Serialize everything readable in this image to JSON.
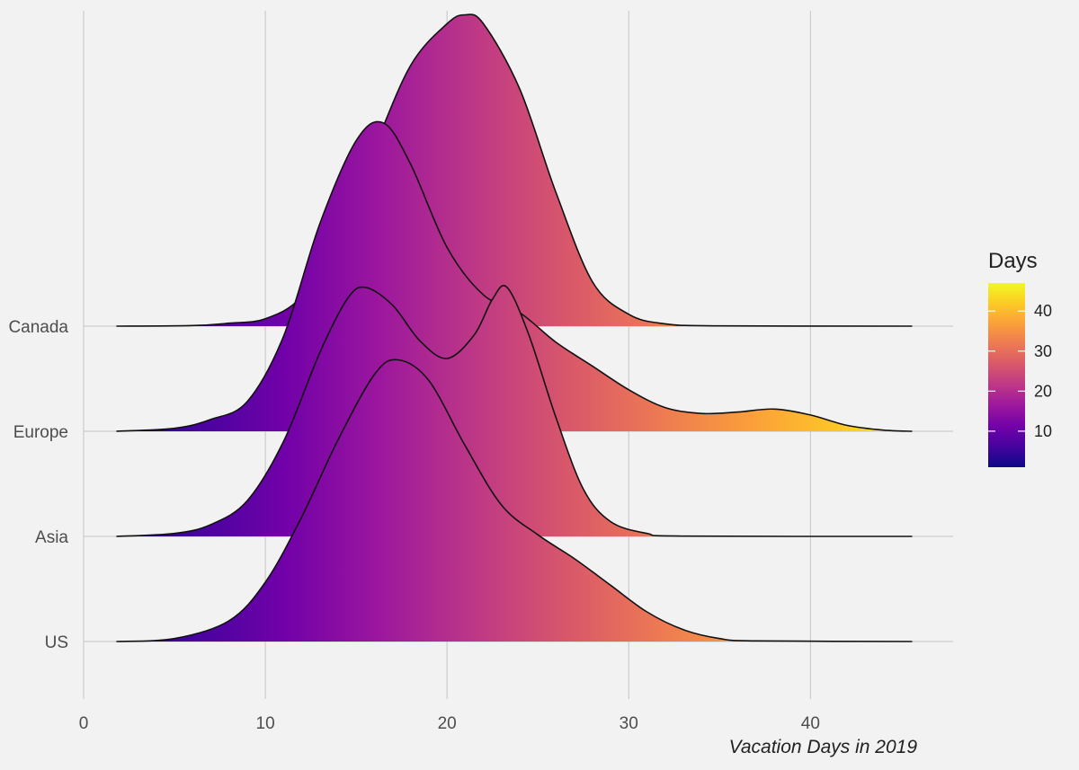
{
  "chart_data": {
    "type": "ridgeline",
    "title": "",
    "xlabel": "Vacation Days in 2019",
    "ylabel": "",
    "xlim": [
      0,
      48
    ],
    "x_ticks": [
      0,
      10,
      20,
      30,
      40
    ],
    "x_range": [
      1.8,
      45.6
    ],
    "grid": true,
    "colormap": "plasma",
    "categories": [
      "US",
      "Asia",
      "Europe",
      "Canada"
    ],
    "series": [
      {
        "name": "US",
        "density": [
          [
            1.8,
            0
          ],
          [
            5,
            0.01
          ],
          [
            8,
            0.07
          ],
          [
            10,
            0.2
          ],
          [
            12,
            0.42
          ],
          [
            14,
            0.68
          ],
          [
            16,
            0.9
          ],
          [
            17.3,
            0.95
          ],
          [
            19,
            0.88
          ],
          [
            21,
            0.66
          ],
          [
            23,
            0.46
          ],
          [
            25,
            0.36
          ],
          [
            27,
            0.28
          ],
          [
            29,
            0.19
          ],
          [
            31,
            0.1
          ],
          [
            33,
            0.04
          ],
          [
            35,
            0.01
          ],
          [
            37,
            0.002
          ],
          [
            45.6,
            0
          ]
        ]
      },
      {
        "name": "Asia",
        "density": [
          [
            1.8,
            0
          ],
          [
            5,
            0.01
          ],
          [
            7,
            0.04
          ],
          [
            9,
            0.12
          ],
          [
            11,
            0.32
          ],
          [
            13,
            0.62
          ],
          [
            14.5,
            0.8
          ],
          [
            15.5,
            0.84
          ],
          [
            17,
            0.78
          ],
          [
            18.5,
            0.66
          ],
          [
            20,
            0.6
          ],
          [
            21.5,
            0.68
          ],
          [
            22.5,
            0.8
          ],
          [
            23.3,
            0.84
          ],
          [
            24.5,
            0.68
          ],
          [
            26,
            0.4
          ],
          [
            27.5,
            0.16
          ],
          [
            29,
            0.05
          ],
          [
            31,
            0.01
          ],
          [
            33,
            0.001
          ],
          [
            45.6,
            0
          ]
        ]
      },
      {
        "name": "Europe",
        "density": [
          [
            1.8,
            0
          ],
          [
            5,
            0.01
          ],
          [
            7,
            0.04
          ],
          [
            9,
            0.1
          ],
          [
            11,
            0.32
          ],
          [
            13,
            0.7
          ],
          [
            15,
            0.98
          ],
          [
            16.5,
            1.04
          ],
          [
            18,
            0.9
          ],
          [
            20,
            0.62
          ],
          [
            22,
            0.46
          ],
          [
            24,
            0.4
          ],
          [
            26,
            0.3
          ],
          [
            28,
            0.22
          ],
          [
            30,
            0.14
          ],
          [
            32,
            0.08
          ],
          [
            34,
            0.06
          ],
          [
            36,
            0.065
          ],
          [
            38,
            0.075
          ],
          [
            40,
            0.055
          ],
          [
            42,
            0.02
          ],
          [
            44,
            0.004
          ],
          [
            45.6,
            0
          ]
        ]
      },
      {
        "name": "Canada",
        "density": [
          [
            1.8,
            0
          ],
          [
            6,
            0.002
          ],
          [
            8,
            0.01
          ],
          [
            10,
            0.025
          ],
          [
            12,
            0.1
          ],
          [
            14,
            0.3
          ],
          [
            16,
            0.6
          ],
          [
            18,
            0.88
          ],
          [
            20,
            1.02
          ],
          [
            21,
            1.05
          ],
          [
            22,
            1.02
          ],
          [
            24,
            0.8
          ],
          [
            26,
            0.45
          ],
          [
            28,
            0.15
          ],
          [
            30,
            0.04
          ],
          [
            32,
            0.008
          ],
          [
            35,
            0.001
          ],
          [
            45.6,
            0
          ]
        ]
      }
    ],
    "legend": {
      "title": "Days",
      "placement": "right",
      "range": [
        1,
        47
      ],
      "ticks": [
        10,
        20,
        30,
        40
      ],
      "colors": [
        "#0d0887",
        "#46039f",
        "#7201a8",
        "#9c179e",
        "#bd3786",
        "#d8576b",
        "#ed7953",
        "#fb9f3a",
        "#fdca26",
        "#f0f921"
      ]
    }
  }
}
